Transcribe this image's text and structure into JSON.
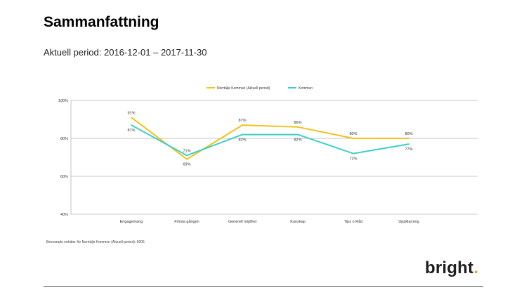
{
  "page": {
    "title": "Sammanfattning",
    "period": "Aktuell period: 2016-12-01 – 2017-11-30",
    "footnote": "Besvarade enkäter för Norrtälje Kommun (Aktuell period): 6005",
    "logo_text": "bright",
    "logo_dot": ".",
    "logo_dot_color": "#f5a623"
  },
  "chart_data": {
    "type": "line",
    "categories": [
      "Engagemang",
      "Första gången",
      "Generell nöjdhet",
      "Kunskap",
      "Tips o Råd",
      "Uppklarning"
    ],
    "series": [
      {
        "name": "Norrtälje Kommun (Aktuell period)",
        "color": "#f2c21a",
        "values": [
          91,
          69,
          87,
          86,
          80,
          80
        ],
        "labels": [
          "91%",
          "69%",
          "87%",
          "86%",
          "80%",
          "80%"
        ]
      },
      {
        "name": "Kommun",
        "color": "#3ccfc8",
        "values": [
          87,
          71,
          82,
          82,
          72,
          77
        ],
        "labels": [
          "87%",
          "71%",
          "82%",
          "82%",
          "72%",
          "77%"
        ]
      }
    ],
    "yticks": [
      "40%",
      "60%",
      "80%",
      "100%"
    ],
    "ytick_values": [
      40,
      60,
      80,
      100
    ],
    "ylim": [
      40,
      100
    ],
    "grid": true,
    "legend_position": "top-center"
  }
}
